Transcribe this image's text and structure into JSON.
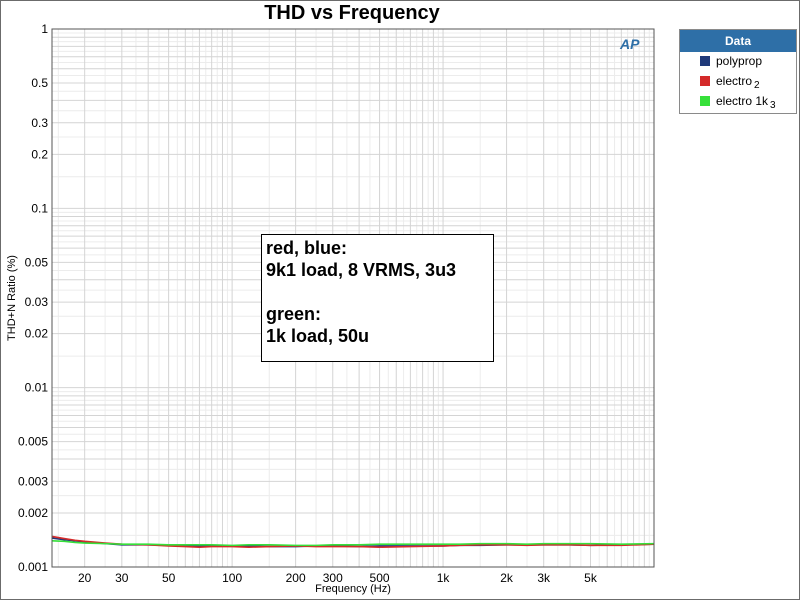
{
  "chart_data": {
    "type": "line",
    "title": "THD vs Frequency",
    "xlabel": "Frequency (Hz)",
    "ylabel": "THD+N Ratio (%)",
    "x_scale": "log",
    "y_scale": "log",
    "xlim": [
      14,
      10000
    ],
    "ylim": [
      0.001,
      1
    ],
    "grid": true,
    "legend_position": "right",
    "x_ticks": [
      {
        "value": 20,
        "label": "20"
      },
      {
        "value": 30,
        "label": "30"
      },
      {
        "value": 50,
        "label": "50"
      },
      {
        "value": 100,
        "label": "100"
      },
      {
        "value": 200,
        "label": "200"
      },
      {
        "value": 300,
        "label": "300"
      },
      {
        "value": 500,
        "label": "500"
      },
      {
        "value": 1000,
        "label": "1k"
      },
      {
        "value": 2000,
        "label": "2k"
      },
      {
        "value": 3000,
        "label": "3k"
      },
      {
        "value": 5000,
        "label": "5k"
      }
    ],
    "y_ticks": [
      {
        "value": 1,
        "label": "1"
      },
      {
        "value": 0.5,
        "label": "0.5"
      },
      {
        "value": 0.3,
        "label": "0.3"
      },
      {
        "value": 0.2,
        "label": "0.2"
      },
      {
        "value": 0.1,
        "label": "0.1"
      },
      {
        "value": 0.05,
        "label": "0.05"
      },
      {
        "value": 0.03,
        "label": "0.03"
      },
      {
        "value": 0.02,
        "label": "0.02"
      },
      {
        "value": 0.01,
        "label": "0.01"
      },
      {
        "value": 0.005,
        "label": "0.005"
      },
      {
        "value": 0.003,
        "label": "0.003"
      },
      {
        "value": 0.002,
        "label": "0.002"
      },
      {
        "value": 0.001,
        "label": "0.001"
      }
    ],
    "legend": {
      "title": "Data",
      "items": [
        {
          "label": "polyprop",
          "suffix": "",
          "color": "#1f3a7a"
        },
        {
          "label": "electro",
          "suffix": "2",
          "color": "#d42a2a"
        },
        {
          "label": "electro 1k",
          "suffix": "3",
          "color": "#36e03a"
        }
      ]
    },
    "x": [
      14,
      16,
      18,
      20,
      25,
      30,
      40,
      50,
      60,
      70,
      80,
      100,
      120,
      150,
      200,
      250,
      300,
      400,
      500,
      700,
      1000,
      1200,
      1500,
      2000,
      2500,
      3000,
      4000,
      5000,
      7000,
      10000
    ],
    "series": [
      {
        "name": "polyprop",
        "color": "#1f3a7a",
        "values": [
          0.00145,
          0.00142,
          0.0014,
          0.00138,
          0.00135,
          0.00133,
          0.00133,
          0.00132,
          0.00132,
          0.00131,
          0.00131,
          0.00131,
          0.00131,
          0.0013,
          0.0013,
          0.00131,
          0.00131,
          0.0013,
          0.00131,
          0.00131,
          0.00131,
          0.00132,
          0.00132,
          0.00133,
          0.00133,
          0.00133,
          0.00133,
          0.00132,
          0.00133,
          0.00134
        ]
      },
      {
        "name": "electro",
        "color": "#d42a2a",
        "values": [
          0.00148,
          0.00144,
          0.00141,
          0.00139,
          0.00136,
          0.00134,
          0.00133,
          0.00131,
          0.0013,
          0.00129,
          0.0013,
          0.0013,
          0.00129,
          0.0013,
          0.00131,
          0.0013,
          0.0013,
          0.0013,
          0.00129,
          0.0013,
          0.00131,
          0.00132,
          0.00133,
          0.00133,
          0.00132,
          0.00133,
          0.00133,
          0.00132,
          0.00132,
          0.00134
        ]
      },
      {
        "name": "electro 1k",
        "color": "#36e03a",
        "values": [
          0.0014,
          0.00139,
          0.00137,
          0.00136,
          0.00135,
          0.00134,
          0.00134,
          0.00133,
          0.00133,
          0.00133,
          0.00133,
          0.00132,
          0.00133,
          0.00133,
          0.00132,
          0.00132,
          0.00133,
          0.00133,
          0.00134,
          0.00134,
          0.00134,
          0.00134,
          0.00135,
          0.00135,
          0.00134,
          0.00135,
          0.00135,
          0.00135,
          0.00134,
          0.00135
        ]
      }
    ],
    "annotation": {
      "lines": [
        "red, blue:",
        "9k1 load, 8 VRMS, 3u3",
        "",
        "green:",
        "1k load, 50u"
      ]
    }
  },
  "brand": {
    "logo_text": "AP",
    "color": "#2e6fa7"
  }
}
